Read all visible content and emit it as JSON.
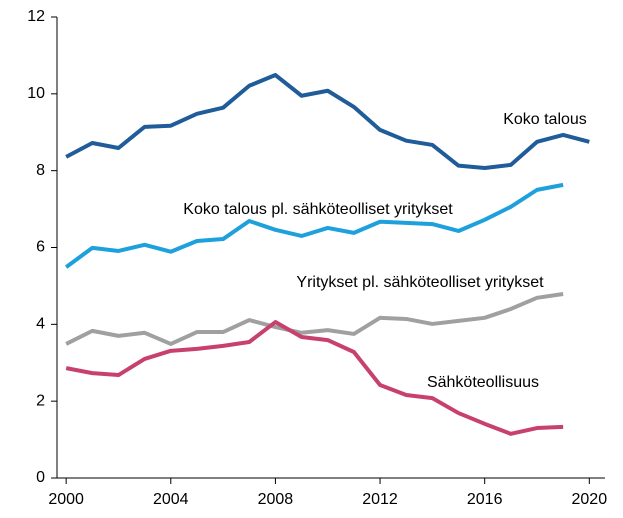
{
  "chart_data": {
    "type": "line",
    "x": [
      2000,
      2001,
      2002,
      2003,
      2004,
      2005,
      2006,
      2007,
      2008,
      2009,
      2010,
      2011,
      2012,
      2013,
      2014,
      2015,
      2016,
      2017,
      2018,
      2019,
      2020
    ],
    "xlim": [
      1999.65,
      2020.6
    ],
    "xticks": [
      2000,
      2004,
      2008,
      2012,
      2016,
      2020
    ],
    "ylim": [
      0,
      12
    ],
    "yticks": [
      0,
      2,
      4,
      6,
      8,
      10,
      12
    ],
    "grid": false,
    "series": [
      {
        "name": "Koko talous",
        "color": "#1f5c99",
        "values": [
          8.36,
          8.72,
          8.59,
          9.14,
          9.17,
          9.48,
          9.64,
          10.21,
          10.49,
          9.95,
          10.08,
          9.66,
          9.06,
          8.78,
          8.67,
          8.13,
          8.07,
          8.15,
          8.75,
          8.93,
          8.75
        ]
      },
      {
        "name": "Koko talous pl. sähköteolliset yritykset",
        "color": "#1ea0dc",
        "values": [
          5.49,
          5.99,
          5.91,
          6.07,
          5.89,
          6.17,
          6.22,
          6.69,
          6.46,
          6.3,
          6.51,
          6.38,
          6.67,
          6.64,
          6.61,
          6.43,
          6.72,
          7.06,
          7.5,
          7.63,
          null
        ]
      },
      {
        "name": "Yritykset pl. sähköteolliset yritykset",
        "color": "#a0a0a0",
        "values": [
          3.49,
          3.83,
          3.7,
          3.78,
          3.49,
          3.8,
          3.8,
          4.11,
          3.93,
          3.78,
          3.85,
          3.75,
          4.17,
          4.14,
          4.01,
          4.09,
          4.17,
          4.4,
          4.69,
          4.79,
          null
        ]
      },
      {
        "name": "Sähköteollisuus",
        "color": "#c8416e",
        "values": [
          2.86,
          2.73,
          2.68,
          3.1,
          3.31,
          3.36,
          3.44,
          3.54,
          4.06,
          3.67,
          3.59,
          3.28,
          2.42,
          2.16,
          2.08,
          1.69,
          1.41,
          1.15,
          1.3,
          1.33,
          null
        ]
      }
    ]
  }
}
